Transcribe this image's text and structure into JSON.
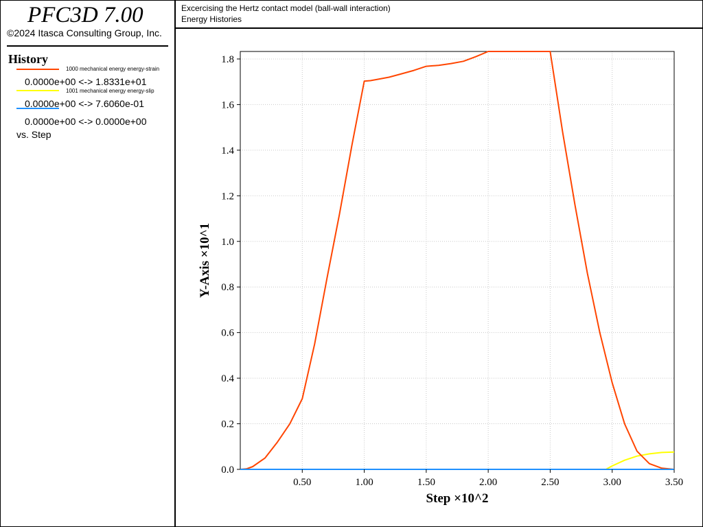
{
  "app": {
    "title": "PFC3D 7.00",
    "copyright": "©2024 Itasca Consulting Group, Inc."
  },
  "header": {
    "title": "Excercising the Hertz contact model (ball-wall interaction)",
    "subtitle": "Energy Histories"
  },
  "legend": {
    "heading": "History",
    "vs_label": "vs. Step",
    "entries": [
      {
        "name": "1000 mechanical energy energy-strain",
        "range": "0.0000e+00 <->  1.8331e+01",
        "color": "#ff4500"
      },
      {
        "name": "1001 mechanical energy energy-slip",
        "range": "0.0000e+00 <->  7.6060e-01",
        "color": "#ffff00"
      },
      {
        "name": "",
        "range": "0.0000e+00 <->  0.0000e+00",
        "color": "#1e90ff"
      }
    ]
  },
  "chart_data": {
    "type": "line",
    "xlabel": "Step ×10^2",
    "ylabel": "Y-Axis ×10^1",
    "xlim": [
      0.0,
      3.5
    ],
    "ylim": [
      0.0,
      1.833
    ],
    "x_ticks": [
      "0.50",
      "1.00",
      "1.50",
      "2.00",
      "2.50",
      "3.00",
      "3.50"
    ],
    "y_ticks": [
      "0.0",
      "0.2",
      "0.4",
      "0.6",
      "0.8",
      "1.0",
      "1.2",
      "1.4",
      "1.6",
      "1.8"
    ],
    "grid": true,
    "series": [
      {
        "name": "1000 mechanical energy energy-strain",
        "color": "#ff4500",
        "x": [
          0.0,
          0.05,
          0.1,
          0.2,
          0.3,
          0.4,
          0.5,
          0.6,
          0.7,
          0.8,
          0.9,
          1.0,
          1.05,
          1.1,
          1.2,
          1.3,
          1.4,
          1.5,
          1.55,
          1.6,
          1.7,
          1.8,
          1.9,
          2.0,
          2.2,
          2.4,
          2.5,
          2.6,
          2.7,
          2.8,
          2.9,
          3.0,
          3.1,
          3.2,
          3.3,
          3.4,
          3.5
        ],
        "y": [
          0.0,
          0.002,
          0.012,
          0.05,
          0.12,
          0.2,
          0.31,
          0.55,
          0.84,
          1.12,
          1.42,
          1.703,
          1.705,
          1.71,
          1.72,
          1.735,
          1.75,
          1.768,
          1.77,
          1.772,
          1.78,
          1.79,
          1.81,
          1.833,
          1.833,
          1.833,
          1.833,
          1.48,
          1.16,
          0.86,
          0.6,
          0.38,
          0.2,
          0.08,
          0.025,
          0.005,
          0.0
        ]
      },
      {
        "name": "1001 mechanical energy energy-slip",
        "color": "#ffff00",
        "x": [
          0.0,
          2.95,
          3.0,
          3.1,
          3.2,
          3.3,
          3.4,
          3.5
        ],
        "y": [
          0.0,
          0.0,
          0.015,
          0.04,
          0.058,
          0.068,
          0.074,
          0.076
        ]
      },
      {
        "name": "",
        "color": "#1e90ff",
        "x": [
          0.0,
          3.5
        ],
        "y": [
          0.0,
          0.0
        ]
      }
    ]
  }
}
